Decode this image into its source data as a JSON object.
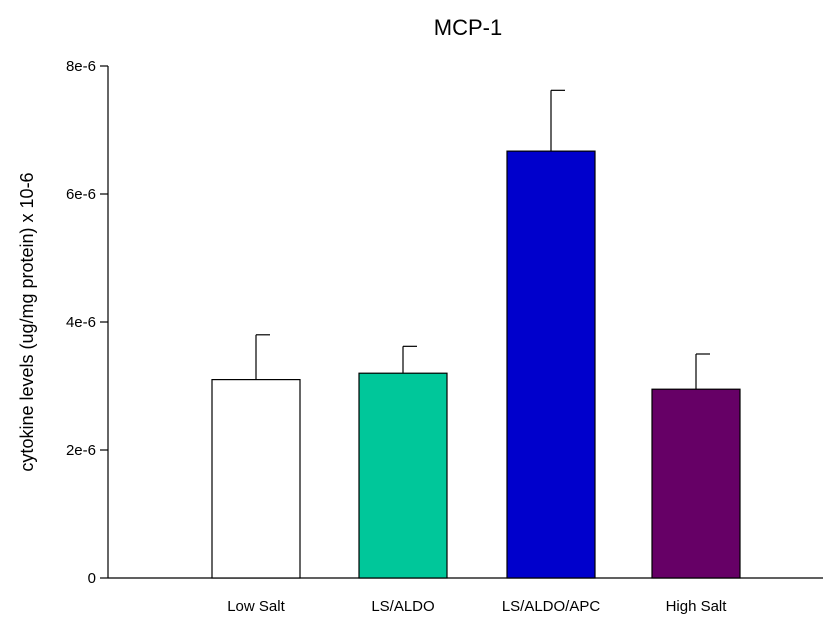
{
  "chart_data": {
    "type": "bar",
    "title": "MCP-1",
    "xlabel": "",
    "ylabel": "cytokine levels (ug/mg protein) x 10-6",
    "categories": [
      "Low Salt",
      "LS/ALDO",
      "LS/ALDO/APC",
      "High Salt"
    ],
    "values": [
      3.1e-06,
      3.2e-06,
      6.67e-06,
      2.95e-06
    ],
    "error_upper": [
      7e-07,
      4.2e-07,
      9.5e-07,
      5.5e-07
    ],
    "bar_colors": [
      "#ffffff",
      "#00c79a",
      "#0000cc",
      "#660066"
    ],
    "ylim": [
      0,
      8e-06
    ],
    "yticks": [
      0,
      2e-06,
      4e-06,
      6e-06,
      8e-06
    ],
    "ytick_labels": [
      "0",
      "2e-6",
      "4e-6",
      "6e-6",
      "8e-6"
    ],
    "grid": false,
    "legend": "none"
  }
}
